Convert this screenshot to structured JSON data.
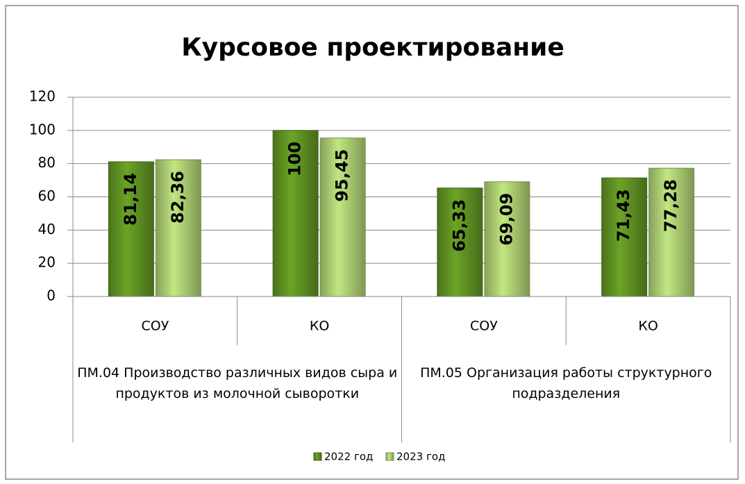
{
  "chart_data": {
    "type": "bar",
    "title": "Курсовое проектирование",
    "categories": [
      "СОУ",
      "КО",
      "СОУ",
      "КО"
    ],
    "category_groups": [
      "ПМ.04 Производство различных видов сыра и продуктов из молочной сыворотки",
      "ПМ.05 Организация работы структурного подразделения"
    ],
    "series": [
      {
        "name": "2022 год",
        "color": "#5e8f22",
        "values": [
          81.14,
          100,
          65.33,
          71.43
        ],
        "value_labels": [
          "81,14",
          "100",
          "65,33",
          "71,43"
        ]
      },
      {
        "name": "2023 год",
        "color": "#a9c970",
        "values": [
          82.36,
          95.45,
          69.09,
          77.28
        ],
        "value_labels": [
          "82,36",
          "95,45",
          "69,09",
          "77,28"
        ]
      }
    ],
    "ylim": [
      0,
      120
    ],
    "yticks": [
      0,
      20,
      40,
      60,
      80,
      100,
      120
    ],
    "grid": true,
    "legend": "bottom"
  }
}
